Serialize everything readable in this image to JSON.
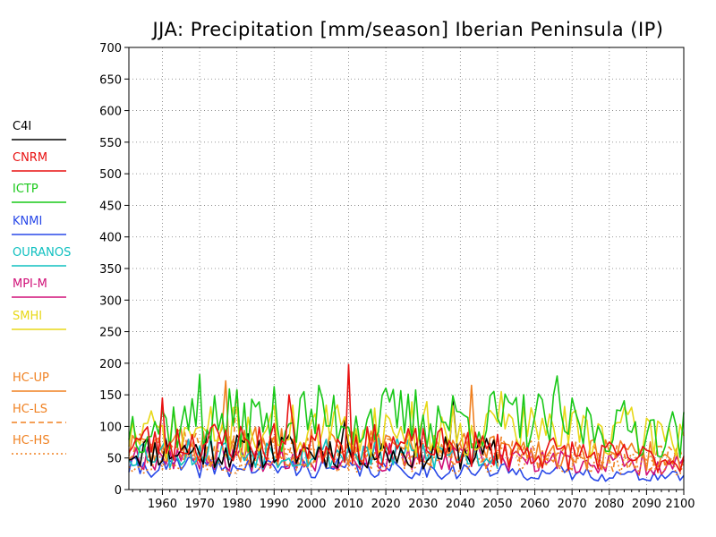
{
  "chart_data": {
    "type": "line",
    "title": "JJA: Precipitation [mm/season] Iberian Peninsula (IP)",
    "xlabel": "",
    "ylabel": "",
    "xlim": [
      1951,
      2100
    ],
    "ylim": [
      0,
      700
    ],
    "x_ticks": [
      "1960",
      "1970",
      "1980",
      "1990",
      "2000",
      "2010",
      "2020",
      "2030",
      "2040",
      "2050",
      "2060",
      "2070",
      "2080",
      "2090",
      "2100"
    ],
    "y_ticks": [
      "0",
      "50",
      "100",
      "150",
      "200",
      "250",
      "300",
      "350",
      "400",
      "450",
      "500",
      "550",
      "600",
      "650",
      "700"
    ],
    "grid": true,
    "legend_position": "left",
    "series": [
      {
        "name": "C4I",
        "color": "#000000",
        "dash": "solid",
        "x_start": 1951,
        "x_end": 2050,
        "noise_seed": 11,
        "anchors": [
          [
            1951,
            60
          ],
          [
            2000,
            60
          ],
          [
            2050,
            55
          ]
        ],
        "peaks": [
          [
            1972,
            95
          ],
          [
            2009,
            110
          ],
          [
            2038,
            140
          ]
        ]
      },
      {
        "name": "CNRM",
        "color": "#e81010",
        "dash": "solid",
        "x_start": 1951,
        "x_end": 2100,
        "noise_seed": 23,
        "anchors": [
          [
            1951,
            75
          ],
          [
            2000,
            72
          ],
          [
            2050,
            62
          ],
          [
            2100,
            45
          ]
        ],
        "peaks": [
          [
            1960,
            145
          ],
          [
            1994,
            150
          ],
          [
            2010,
            198
          ]
        ]
      },
      {
        "name": "ICTP",
        "color": "#18c818",
        "dash": "solid",
        "x_start": 1951,
        "x_end": 2100,
        "noise_seed": 37,
        "anchors": [
          [
            1951,
            100
          ],
          [
            2000,
            112
          ],
          [
            2050,
            108
          ],
          [
            2080,
            98
          ],
          [
            2100,
            85
          ]
        ],
        "peaks": [
          [
            1970,
            182
          ],
          [
            2066,
            180
          ]
        ]
      },
      {
        "name": "KNMI",
        "color": "#2848e8",
        "dash": "solid",
        "x_start": 1951,
        "x_end": 2100,
        "noise_seed": 41,
        "anchors": [
          [
            1951,
            35
          ],
          [
            2000,
            33
          ],
          [
            2050,
            28
          ],
          [
            2100,
            20
          ]
        ],
        "peaks": []
      },
      {
        "name": "OURANOS",
        "color": "#10c0c0",
        "dash": "solid",
        "x_start": 1951,
        "x_end": 2050,
        "noise_seed": 53,
        "anchors": [
          [
            1951,
            60
          ],
          [
            2000,
            58
          ],
          [
            2050,
            52
          ]
        ],
        "peaks": []
      },
      {
        "name": "MPI-M",
        "color": "#d01078",
        "dash": "solid",
        "x_start": 1951,
        "x_end": 2100,
        "noise_seed": 67,
        "anchors": [
          [
            1951,
            55
          ],
          [
            2000,
            52
          ],
          [
            2050,
            45
          ],
          [
            2100,
            38
          ]
        ],
        "peaks": []
      },
      {
        "name": "SMHI",
        "color": "#e8d818",
        "dash": "solid",
        "x_start": 1951,
        "x_end": 2100,
        "noise_seed": 71,
        "anchors": [
          [
            1951,
            85
          ],
          [
            2000,
            92
          ],
          [
            2050,
            95
          ],
          [
            2100,
            85
          ]
        ],
        "peaks": [
          [
            2051,
            155
          ]
        ]
      },
      {
        "name": "HC-UP",
        "color": "#f08020",
        "dash": "solid",
        "x_start": 1951,
        "x_end": 2100,
        "noise_seed": 83,
        "anchors": [
          [
            1951,
            65
          ],
          [
            2000,
            68
          ],
          [
            2050,
            60
          ],
          [
            2100,
            50
          ]
        ],
        "peaks": [
          [
            1977,
            172
          ],
          [
            2043,
            165
          ]
        ]
      },
      {
        "name": "HC-LS",
        "color": "#f08020",
        "dash": "dashed",
        "x_start": 1951,
        "x_end": 2100,
        "noise_seed": 89,
        "anchors": [
          [
            1951,
            60
          ],
          [
            2000,
            62
          ],
          [
            2050,
            56
          ],
          [
            2100,
            48
          ]
        ],
        "peaks": [
          [
            1980,
            160
          ]
        ]
      },
      {
        "name": "HC-HS",
        "color": "#f08020",
        "dash": "dotted",
        "x_start": 1951,
        "x_end": 2100,
        "noise_seed": 97,
        "anchors": [
          [
            1951,
            45
          ],
          [
            2000,
            48
          ],
          [
            2050,
            44
          ],
          [
            2100,
            38
          ]
        ],
        "peaks": []
      }
    ]
  }
}
